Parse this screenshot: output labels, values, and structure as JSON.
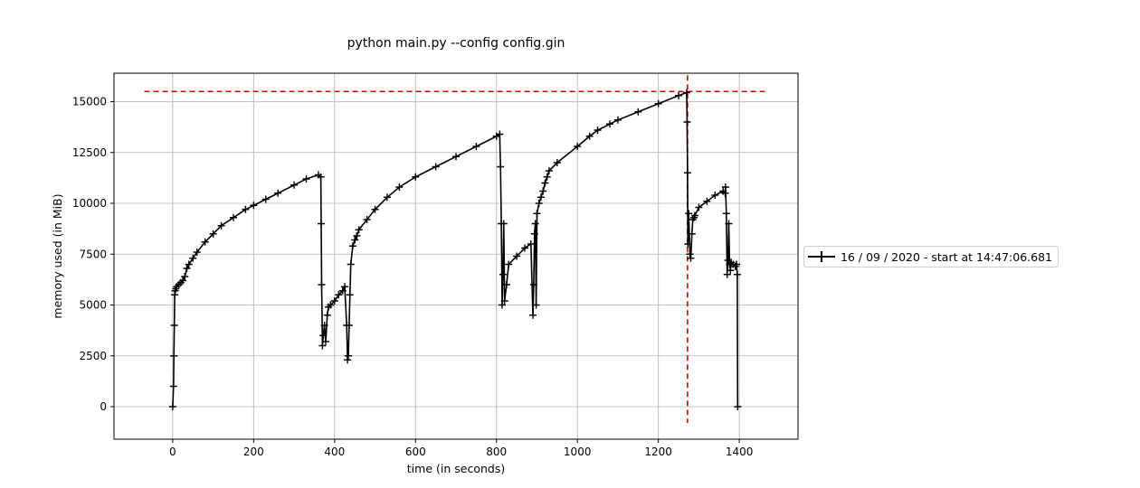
{
  "chart_data": {
    "type": "line",
    "title": "python main.py --config config.gin",
    "xlabel": "time (in seconds)",
    "ylabel": "memory used (in MiB)",
    "xlim": [
      -145,
      1545
    ],
    "ylim": [
      -1600,
      16400
    ],
    "xticks": [
      0,
      200,
      400,
      600,
      800,
      1000,
      1200,
      1400
    ],
    "yticks": [
      0,
      2500,
      5000,
      7500,
      10000,
      12500,
      15000
    ],
    "grid": true,
    "legend_position": "outside-right",
    "colors": {
      "series": "#000000",
      "max_marker": "#e00000"
    },
    "series": [
      {
        "name": "16 / 09 / 2020 - start at 14:47:06.681",
        "marker": "+",
        "x": [
          0,
          2,
          3,
          4,
          5,
          6,
          8,
          10,
          15,
          20,
          25,
          30,
          35,
          40,
          50,
          60,
          80,
          100,
          120,
          150,
          180,
          200,
          230,
          260,
          300,
          330,
          360,
          366,
          367,
          368,
          370,
          372,
          375,
          378,
          382,
          385,
          390,
          400,
          410,
          420,
          425,
          430,
          432,
          434,
          436,
          438,
          440,
          445,
          450,
          455,
          460,
          480,
          500,
          530,
          560,
          600,
          650,
          700,
          750,
          800,
          808,
          810,
          812,
          814,
          816,
          818,
          820,
          825,
          830,
          850,
          870,
          885,
          890,
          892,
          894,
          896,
          898,
          900,
          905,
          910,
          915,
          920,
          925,
          930,
          950,
          1000,
          1030,
          1050,
          1080,
          1100,
          1150,
          1200,
          1250,
          1270,
          1271,
          1272,
          1273,
          1275,
          1278,
          1280,
          1283,
          1285,
          1288,
          1290,
          1300,
          1320,
          1340,
          1360,
          1365,
          1366,
          1368,
          1370,
          1372,
          1374,
          1376,
          1378,
          1380,
          1385,
          1390,
          1393,
          1395,
          1396
        ],
        "values": [
          0,
          1000,
          2500,
          4000,
          5500,
          5700,
          5800,
          5900,
          6000,
          6100,
          6200,
          6400,
          6800,
          7000,
          7300,
          7600,
          8100,
          8500,
          8900,
          9300,
          9700,
          9900,
          10200,
          10500,
          10900,
          11200,
          11400,
          11300,
          9000,
          6000,
          3000,
          3500,
          4000,
          3200,
          4500,
          4900,
          5000,
          5200,
          5500,
          5700,
          5900,
          4000,
          2300,
          2500,
          4000,
          5500,
          7000,
          7900,
          8200,
          8400,
          8700,
          9200,
          9700,
          10300,
          10800,
          11300,
          11800,
          12300,
          12800,
          13300,
          13400,
          11800,
          9000,
          5000,
          6500,
          9000,
          5200,
          6000,
          7000,
          7400,
          7800,
          8000,
          4500,
          6000,
          8500,
          9000,
          5000,
          9500,
          10000,
          10300,
          10600,
          11000,
          11300,
          11600,
          12000,
          12800,
          13300,
          13600,
          13900,
          14100,
          14500,
          14900,
          15300,
          15450,
          14000,
          11500,
          8000,
          9500,
          7500,
          7300,
          8500,
          9200,
          9300,
          9400,
          9800,
          10100,
          10400,
          10600,
          10500,
          10800,
          9500,
          6500,
          7200,
          9000,
          7000,
          6700,
          7100,
          7000,
          6900,
          7000,
          6500,
          0
        ]
      }
    ],
    "annotations": {
      "max_hline_y": 15500,
      "max_vline_x": 1272
    }
  }
}
